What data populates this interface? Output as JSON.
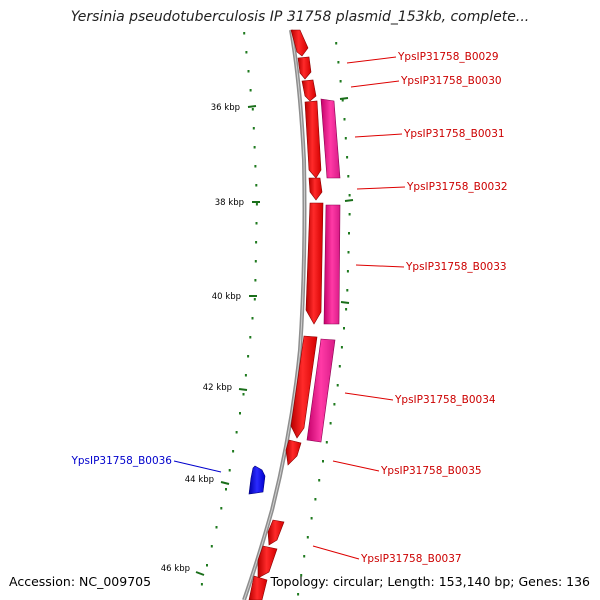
{
  "title": "Yersinia pseudotuberculosis IP 31758 plasmid_153kb, complete...",
  "footer": {
    "accession": "Accession: NC_009705",
    "topology": "Topology: circular; Length: 153,140 bp; Genes: 136"
  },
  "colors": {
    "forward_gene": "#ff0000",
    "forward_gene_secondary": "#ff1493",
    "reverse_gene": "#0000ee",
    "backbone": "#888888",
    "ticks": "#006400",
    "label_forward": "#cc0000",
    "label_reverse": "#0000cc"
  },
  "ticks": [
    {
      "label": "36 kbp"
    },
    {
      "label": "38 kbp"
    },
    {
      "label": "40 kbp"
    },
    {
      "label": "42 kbp"
    },
    {
      "label": "44 kbp"
    },
    {
      "label": "46 kbp"
    }
  ],
  "genes": [
    {
      "label": "YpsIP31758_B0029",
      "strand": "+"
    },
    {
      "label": "YpsIP31758_B0030",
      "strand": "+"
    },
    {
      "label": "YpsIP31758_B0031",
      "strand": "+"
    },
    {
      "label": "YpsIP31758_B0032",
      "strand": "+"
    },
    {
      "label": "YpsIP31758_B0033",
      "strand": "+"
    },
    {
      "label": "YpsIP31758_B0034",
      "strand": "+"
    },
    {
      "label": "YpsIP31758_B0035",
      "strand": "+"
    },
    {
      "label": "YpsIP31758_B0036",
      "strand": "-"
    },
    {
      "label": "YpsIP31758_B0037",
      "strand": "+"
    }
  ]
}
